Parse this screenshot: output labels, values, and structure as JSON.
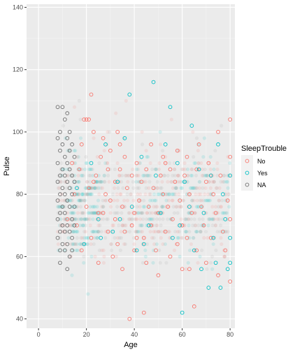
{
  "chart_data": {
    "type": "scatter",
    "title": "",
    "xlabel": "Age",
    "ylabel": "Pulse",
    "xlim": [
      -5,
      82
    ],
    "ylim": [
      37,
      141
    ],
    "x_ticks": [
      0,
      20,
      40,
      60,
      80
    ],
    "y_ticks": [
      40,
      60,
      80,
      100,
      120,
      140
    ],
    "grid": true,
    "background": "#ebebeb",
    "legend": {
      "title": "SleepTrouble",
      "placement": "right",
      "entries": [
        "No",
        "Yes",
        "NA"
      ]
    },
    "series": [
      {
        "name": "No",
        "color": "#f8766d",
        "marker": "open-circle",
        "points": [
          [
            12,
            72
          ],
          [
            14,
            90
          ],
          [
            16,
            70
          ],
          [
            17,
            88
          ],
          [
            18,
            96
          ],
          [
            18,
            62
          ],
          [
            19,
            104
          ],
          [
            20,
            104
          ],
          [
            20,
            76
          ],
          [
            21,
            104
          ],
          [
            22,
            112
          ],
          [
            22,
            66
          ],
          [
            23,
            100
          ],
          [
            23,
            84
          ],
          [
            24,
            86
          ],
          [
            25,
            74
          ],
          [
            25,
            58
          ],
          [
            26,
            92
          ],
          [
            27,
            98
          ],
          [
            28,
            80
          ],
          [
            29,
            88
          ],
          [
            29,
            68
          ],
          [
            30,
            94
          ],
          [
            30,
            78
          ],
          [
            31,
            60
          ],
          [
            32,
            84
          ],
          [
            32,
            72
          ],
          [
            33,
            100
          ],
          [
            33,
            64
          ],
          [
            34,
            88
          ],
          [
            35,
            76
          ],
          [
            35,
            56
          ],
          [
            36,
            92
          ],
          [
            36,
            68
          ],
          [
            37,
            82
          ],
          [
            38,
            40
          ],
          [
            39,
            86
          ],
          [
            39,
            70
          ],
          [
            40,
            74
          ],
          [
            40,
            62
          ],
          [
            41,
            90
          ],
          [
            42,
            78
          ],
          [
            43,
            84
          ],
          [
            44,
            42
          ],
          [
            44,
            66
          ],
          [
            45,
            88
          ],
          [
            45,
            58
          ],
          [
            46,
            76
          ],
          [
            47,
            96
          ],
          [
            47,
            70
          ],
          [
            48,
            82
          ],
          [
            49,
            62
          ],
          [
            50,
            74
          ],
          [
            50,
            54
          ],
          [
            51,
            86
          ],
          [
            52,
            80
          ],
          [
            53,
            90
          ],
          [
            53,
            68
          ],
          [
            54,
            76
          ],
          [
            55,
            88
          ],
          [
            55,
            60
          ],
          [
            56,
            72
          ],
          [
            57,
            84
          ],
          [
            58,
            94
          ],
          [
            58,
            64
          ],
          [
            59,
            78
          ],
          [
            60,
            70
          ],
          [
            60,
            56
          ],
          [
            61,
            86
          ],
          [
            62,
            92
          ],
          [
            62,
            66
          ],
          [
            63,
            80
          ],
          [
            64,
            74
          ],
          [
            65,
            44
          ],
          [
            66,
            88
          ],
          [
            66,
            62
          ],
          [
            67,
            96
          ],
          [
            68,
            76
          ],
          [
            69,
            70
          ],
          [
            70,
            84
          ],
          [
            70,
            58
          ],
          [
            71,
            90
          ],
          [
            72,
            66
          ],
          [
            73,
            80
          ],
          [
            74,
            74
          ],
          [
            75,
            100
          ],
          [
            75,
            54
          ],
          [
            76,
            86
          ],
          [
            77,
            68
          ],
          [
            78,
            62
          ],
          [
            79,
            78
          ],
          [
            80,
            104
          ],
          [
            80,
            52
          ],
          [
            80,
            92
          ],
          [
            80,
            72
          ],
          [
            15,
            80
          ],
          [
            21,
            82
          ],
          [
            27,
            74
          ],
          [
            34,
            96
          ],
          [
            41,
            66
          ],
          [
            52,
            92
          ],
          [
            63,
            56
          ],
          [
            72,
            86
          ]
        ]
      },
      {
        "name": "Yes",
        "color": "#00bfc4",
        "marker": "open-circle",
        "points": [
          [
            16,
            82
          ],
          [
            19,
            64
          ],
          [
            22,
            90
          ],
          [
            25,
            72
          ],
          [
            28,
            96
          ],
          [
            31,
            68
          ],
          [
            33,
            84
          ],
          [
            36,
            98
          ],
          [
            38,
            112
          ],
          [
            39,
            76
          ],
          [
            41,
            62
          ],
          [
            43,
            92
          ],
          [
            46,
            70
          ],
          [
            48,
            116
          ],
          [
            49,
            86
          ],
          [
            51,
            74
          ],
          [
            53,
            96
          ],
          [
            55,
            108
          ],
          [
            56,
            66
          ],
          [
            58,
            90
          ],
          [
            59,
            70
          ],
          [
            60,
            42
          ],
          [
            61,
            84
          ],
          [
            63,
            76
          ],
          [
            64,
            102
          ],
          [
            65,
            62
          ],
          [
            67,
            88
          ],
          [
            68,
            56
          ],
          [
            69,
            74
          ],
          [
            71,
            50
          ],
          [
            72,
            86
          ],
          [
            73,
            66
          ],
          [
            74,
            58
          ],
          [
            75,
            96
          ],
          [
            76,
            50
          ],
          [
            77,
            80
          ],
          [
            78,
            72
          ],
          [
            79,
            56
          ],
          [
            80,
            58
          ],
          [
            80,
            86
          ],
          [
            80,
            66
          ],
          [
            44,
            64
          ],
          [
            34,
            72
          ],
          [
            26,
            66
          ]
        ]
      },
      {
        "name": "NA",
        "color": "#6e6e6e",
        "marker": "open-circle",
        "points": [
          [
            8,
            108
          ],
          [
            8,
            98
          ],
          [
            8,
            90
          ],
          [
            8,
            84
          ],
          [
            8,
            78
          ],
          [
            8,
            72
          ],
          [
            8,
            66
          ],
          [
            9,
            100
          ],
          [
            9,
            94
          ],
          [
            9,
            86
          ],
          [
            9,
            80
          ],
          [
            9,
            74
          ],
          [
            9,
            68
          ],
          [
            9,
            62
          ],
          [
            9,
            58
          ],
          [
            10,
            108
          ],
          [
            10,
            96
          ],
          [
            10,
            88
          ],
          [
            10,
            82
          ],
          [
            10,
            76
          ],
          [
            10,
            70
          ],
          [
            10,
            64
          ],
          [
            11,
            104
          ],
          [
            11,
            92
          ],
          [
            11,
            86
          ],
          [
            11,
            80
          ],
          [
            11,
            74
          ],
          [
            11,
            68
          ],
          [
            11,
            62
          ],
          [
            12,
            106
          ],
          [
            12,
            98
          ],
          [
            12,
            90
          ],
          [
            12,
            84
          ],
          [
            12,
            78
          ],
          [
            12,
            70
          ],
          [
            12,
            64
          ],
          [
            12,
            56
          ],
          [
            13,
            100
          ],
          [
            13,
            94
          ],
          [
            13,
            88
          ],
          [
            13,
            82
          ],
          [
            13,
            76
          ],
          [
            13,
            68
          ],
          [
            13,
            60
          ],
          [
            14,
            96
          ],
          [
            14,
            86
          ],
          [
            14,
            80
          ],
          [
            14,
            72
          ],
          [
            14,
            66
          ],
          [
            14,
            62
          ],
          [
            15,
            92
          ],
          [
            15,
            84
          ],
          [
            15,
            76
          ],
          [
            15,
            70
          ]
        ]
      }
    ]
  }
}
